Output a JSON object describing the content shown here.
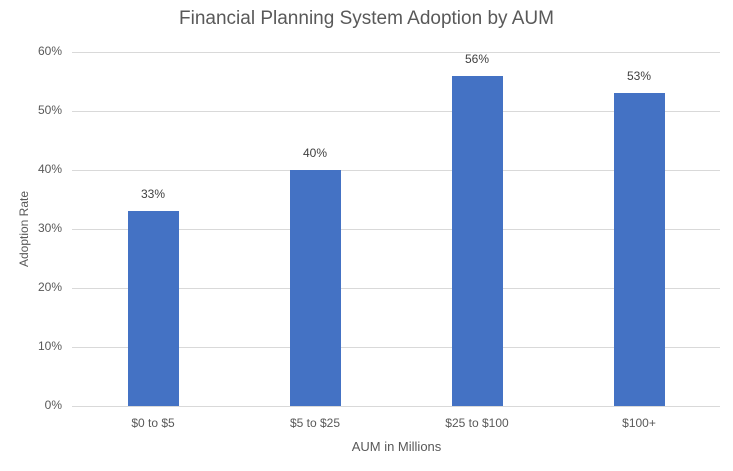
{
  "chart_data": {
    "type": "bar",
    "title": "Financial Planning System Adoption by AUM",
    "xlabel": "AUM in Millions",
    "ylabel": "Adoption Rate",
    "categories": [
      "$0 to $5",
      "$5 to $25",
      "$25 to $100",
      "$100+"
    ],
    "values": [
      33,
      40,
      56,
      53
    ],
    "value_labels": [
      "33%",
      "40%",
      "56%",
      "53%"
    ],
    "ylim": [
      0,
      60
    ],
    "yticks": [
      "0%",
      "10%",
      "20%",
      "30%",
      "40%",
      "50%",
      "60%"
    ],
    "grid": true,
    "legend": "none",
    "bar_color": "#4472c4"
  }
}
